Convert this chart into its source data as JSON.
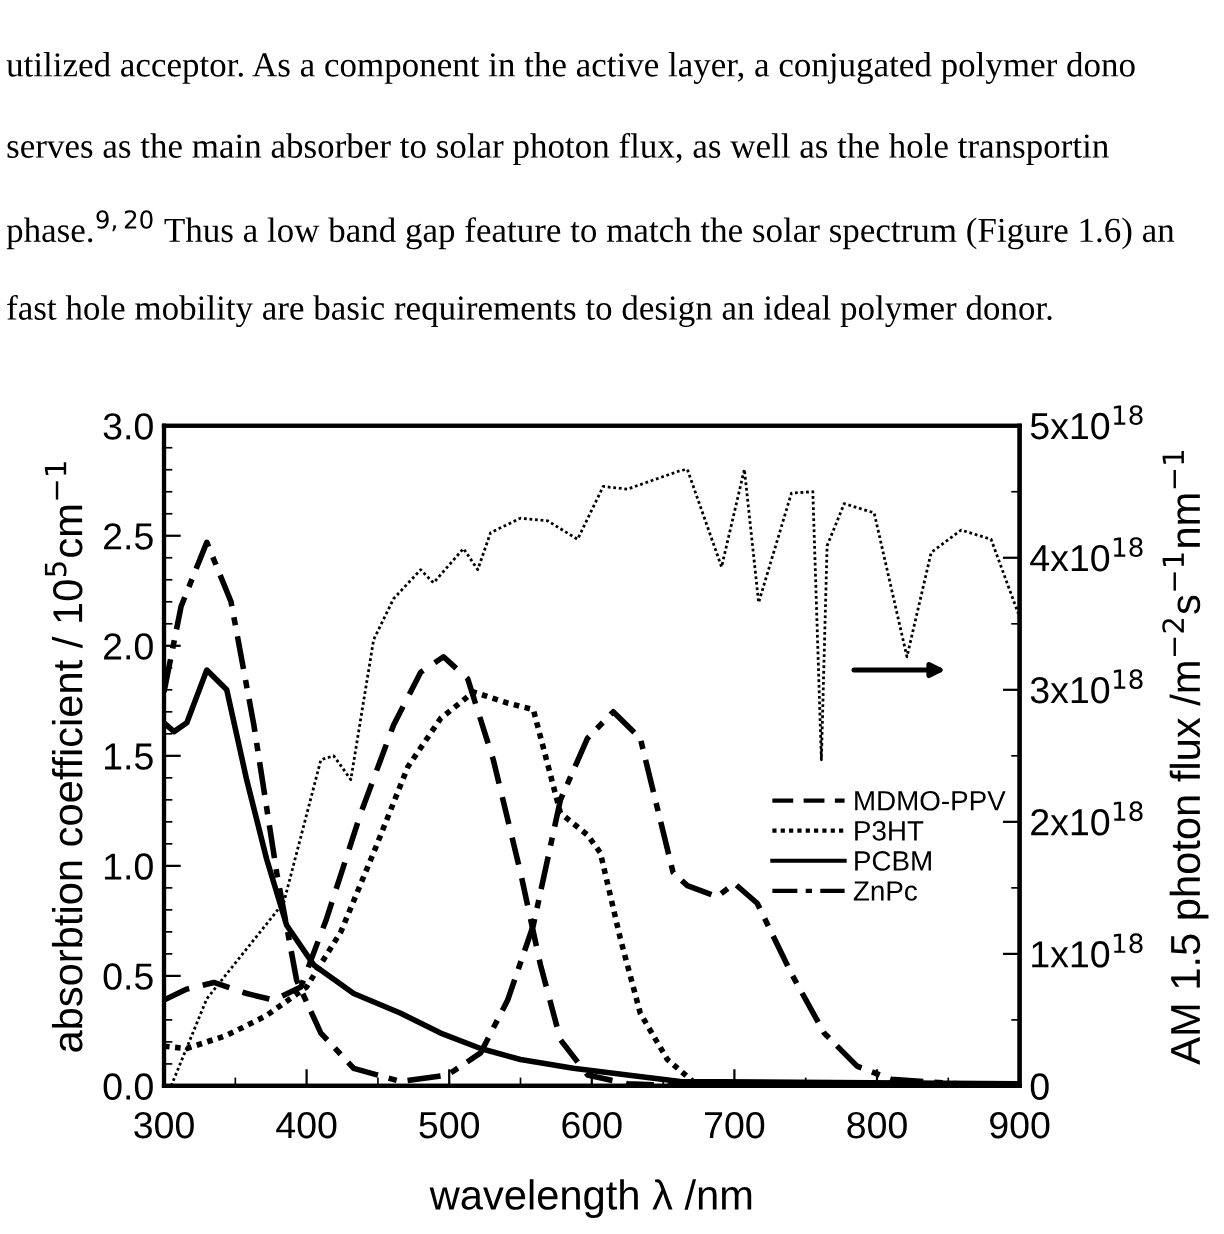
{
  "chart_data": {
    "type": "line",
    "xlabel": "wavelength λ /nm",
    "ylabel": "absorbtion coefficient / 10$^{5}$cm$^{−1}$",
    "y2label": "AM 1.5 photon flux /m$^{−2}$s$^{−1}$nm$^{−1}$",
    "annotations": [
      "utilized acceptor. As a component in the active layer, a conjugated polymer dono",
      "serves as the main absorber to solar photon flux, as well as the hole transportin",
      "phase.$^{9,20}$ Thus a low band gap feature to match the solar spectrum (Figure 1.6) an",
      "fast hole mobility are basic requirements to design an ideal polymer donor."
    ],
    "xlim": [
      300,
      900
    ],
    "xticks": [
      300,
      400,
      500,
      600,
      700,
      800,
      900
    ],
    "ylim": [
      0,
      3
    ],
    "yticks": [
      {
        "value": 0,
        "label": "0.0"
      },
      {
        "value": 0.5,
        "label": "0.5"
      },
      {
        "value": 1,
        "label": "1.0"
      },
      {
        "value": 1.5,
        "label": "1.5"
      },
      {
        "value": 2,
        "label": "2.0"
      },
      {
        "value": 2.5,
        "label": "2.5"
      },
      {
        "value": 3,
        "label": "3.0"
      }
    ],
    "y2lim": [
      0,
      5e+18
    ],
    "y2ticks": [
      0,
      {
        "value": 1e+18,
        "label": "1x10$^{18}$"
      },
      {
        "value": 2e+18,
        "label": "2x10$^{18}$"
      },
      {
        "value": 3e+18,
        "label": "3x10$^{18}$"
      },
      {
        "value": 4e+18,
        "label": "4x10$^{18}$"
      },
      {
        "value": 5e+18,
        "label": "5x10$^{18}$"
      }
    ],
    "legend": "center right",
    "grid": false,
    "marker": "none",
    "series": [
      {
        "name": "MDMO-PPV",
        "color": "#000000",
        "line_style": "dashed",
        "x": [
          300,
          316,
          335,
          358,
          377,
          396,
          414,
          438,
          461,
          480,
          496,
          513,
          531,
          550,
          564,
          578,
          597,
          625,
          662,
          900
        ],
        "values": [
          0.39,
          0.44,
          0.47,
          0.42,
          0.39,
          0.45,
          0.76,
          1.24,
          1.64,
          1.88,
          1.95,
          1.85,
          1.48,
          0.97,
          0.55,
          0.21,
          0.05,
          0.01,
          0,
          0
        ]
      },
      {
        "name": "P3HT",
        "color": "#000000",
        "line_style": "dotted",
        "x": [
          300,
          316,
          344,
          372,
          400,
          424,
          447,
          471,
          494,
          517,
          541,
          559,
          578,
          597,
          606,
          620,
          634,
          653,
          671,
          690,
          900
        ],
        "values": [
          0.18,
          0.17,
          0.23,
          0.32,
          0.45,
          0.7,
          1.06,
          1.45,
          1.67,
          1.79,
          1.74,
          1.71,
          1.24,
          1.14,
          1.06,
          0.67,
          0.33,
          0.12,
          0.02,
          0,
          0
        ]
      },
      {
        "name": "PCBM",
        "color": "#000000",
        "line_style": "solid",
        "x": [
          300,
          307,
          316,
          330,
          344,
          358,
          372,
          386,
          405,
          433,
          466,
          494,
          522,
          550,
          587,
          625,
          662,
          900
        ],
        "values": [
          1.65,
          1.61,
          1.65,
          1.89,
          1.8,
          1.39,
          1.03,
          0.73,
          0.55,
          0.42,
          0.33,
          0.24,
          0.17,
          0.12,
          0.08,
          0.05,
          0.02,
          0.01
        ]
      },
      {
        "name": "ZnPc",
        "color": "#000000",
        "line_style": "dashdot",
        "x": [
          300,
          312,
          330,
          347,
          363,
          379,
          393,
          410,
          433,
          466,
          499,
          522,
          541,
          559,
          578,
          597,
          615,
          634,
          657,
          667,
          688,
          700,
          716,
          740,
          763,
          786,
          810,
          857,
          899
        ],
        "values": [
          1.79,
          2.18,
          2.47,
          2.2,
          1.64,
          0.97,
          0.48,
          0.24,
          0.08,
          0.02,
          0.05,
          0.15,
          0.39,
          0.73,
          1.3,
          1.58,
          1.7,
          1.58,
          0.97,
          0.91,
          0.86,
          0.92,
          0.83,
          0.51,
          0.24,
          0.09,
          0.03,
          0.01,
          0
        ]
      },
      {
        "color": "#000000",
        "line_style": "dotted",
        "axis": "y2",
        "x": [
          305,
          330,
          384,
          410,
          419,
          431,
          447,
          461,
          480,
          489,
          510,
          520,
          529,
          550,
          569,
          590,
          608,
          625,
          662,
          667,
          691,
          707,
          717,
          740,
          755,
          761,
          765,
          777,
          798,
          821,
          838,
          859,
          880,
          899
        ],
        "values": [
          0,
          6.6e+17,
          1.39e+18,
          2.47e+18,
          2.5e+18,
          2.32e+18,
          3.38e+18,
          3.69e+18,
          3.91e+18,
          3.81e+18,
          4.07e+18,
          3.91e+18,
          4.19e+18,
          4.3e+18,
          4.28e+18,
          4.14e+18,
          4.54e+18,
          4.52e+18,
          4.66e+18,
          4.67e+18,
          3.93e+18,
          4.67e+18,
          3.66e+18,
          4.49e+18,
          4.5e+18,
          2.47e+18,
          4.09e+18,
          4.41e+18,
          4.34e+18,
          3.25e+18,
          4.04e+18,
          4.21e+18,
          4.14e+18,
          3.58e+18
        ]
      }
    ]
  }
}
